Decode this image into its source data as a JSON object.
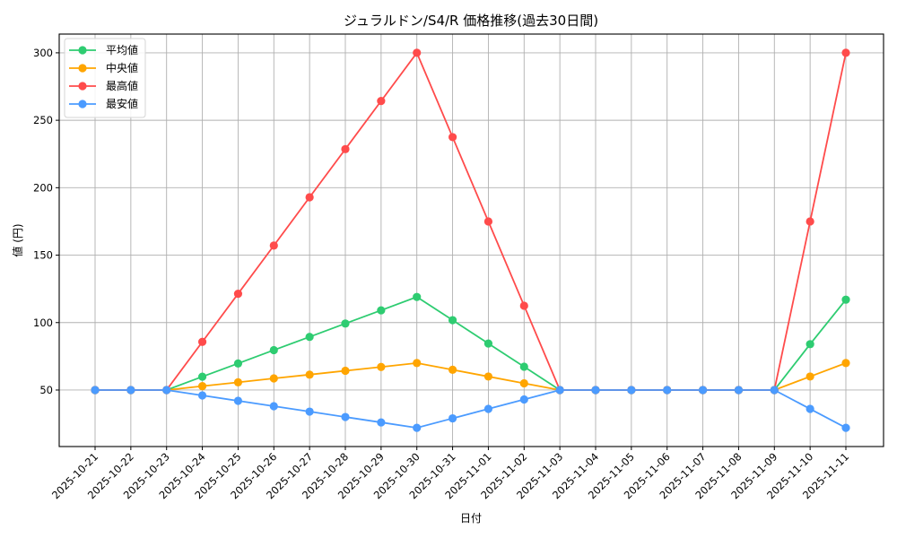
{
  "chart_data": {
    "type": "line",
    "title": "ジュラルドン/S4/R 価格推移(過去30日間)",
    "xlabel": "日付",
    "ylabel": "値 (円)",
    "x": [
      "2025-10-21",
      "2025-10-22",
      "2025-10-23",
      "2025-10-24",
      "2025-10-25",
      "2025-10-26",
      "2025-10-27",
      "2025-10-28",
      "2025-10-29",
      "2025-10-30",
      "2025-10-31",
      "2025-11-01",
      "2025-11-02",
      "2025-11-03",
      "2025-11-04",
      "2025-11-05",
      "2025-11-06",
      "2025-11-07",
      "2025-11-08",
      "2025-11-09",
      "2025-11-10",
      "2025-11-11"
    ],
    "series": [
      {
        "name": "平均値",
        "color": "#2ecc71",
        "values": [
          50,
          50,
          50,
          59.9,
          69.7,
          79.6,
          89.4,
          99.3,
          109.1,
          119,
          101.8,
          84.5,
          67.3,
          50,
          50,
          50,
          50,
          50,
          50,
          50,
          84,
          117
        ]
      },
      {
        "name": "中央値",
        "color": "#ffa500",
        "values": [
          50,
          50,
          50,
          52.9,
          55.7,
          58.6,
          61.4,
          64.3,
          67.1,
          70,
          65,
          60,
          55,
          50,
          50,
          50,
          50,
          50,
          50,
          50,
          60,
          70
        ]
      },
      {
        "name": "最高値",
        "color": "#ff4b4b",
        "values": [
          50,
          50,
          50,
          85.7,
          121.4,
          157.1,
          192.9,
          228.6,
          264.3,
          300,
          237.5,
          175,
          112.5,
          50,
          50,
          50,
          50,
          50,
          50,
          50,
          175,
          300
        ]
      },
      {
        "name": "最安値",
        "color": "#4b9bff",
        "values": [
          50,
          50,
          50,
          46,
          42,
          38,
          34,
          30,
          26,
          22,
          29,
          36,
          43,
          50,
          50,
          50,
          50,
          50,
          50,
          50,
          36,
          22
        ]
      }
    ],
    "yticks": [
      50,
      100,
      150,
      200,
      250,
      300
    ],
    "ylim": [
      8.1,
      313.9
    ],
    "grid": true,
    "legend_position": "upper left",
    "marker": "circle"
  }
}
